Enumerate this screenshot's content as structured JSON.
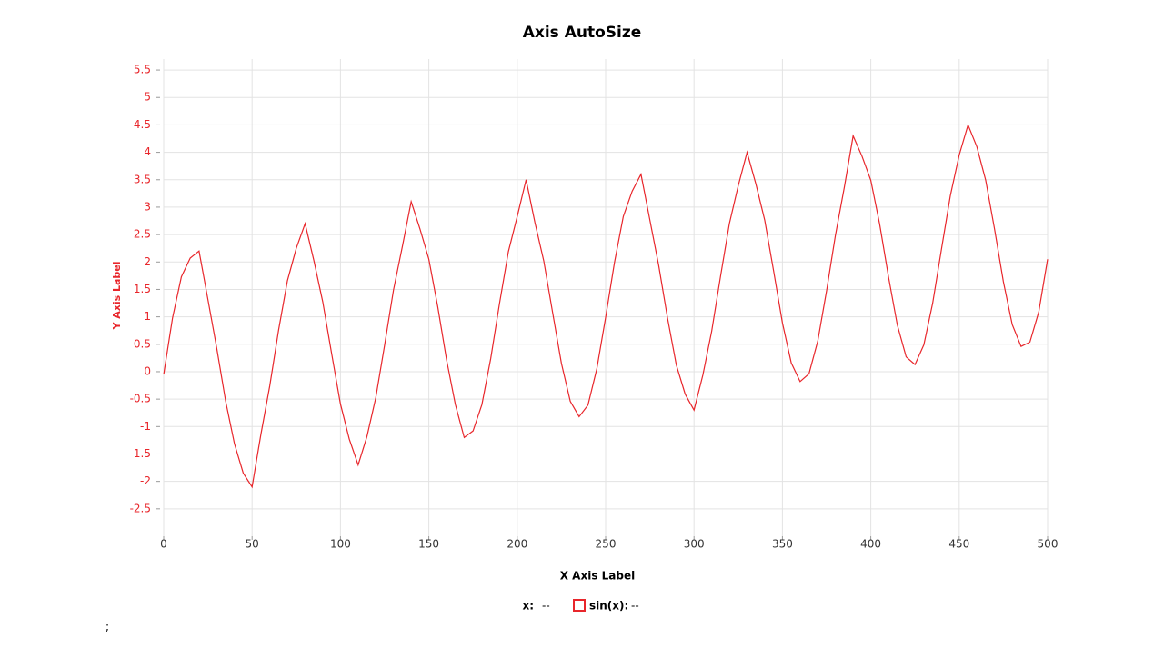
{
  "chart_data": {
    "type": "line",
    "title": "Axis AutoSize",
    "x_label": "X Axis Label",
    "y_label": "Y Axis Label",
    "x": [
      0,
      5,
      10,
      15,
      20,
      25,
      30,
      35,
      40,
      45,
      50,
      55,
      60,
      65,
      70,
      75,
      80,
      85,
      90,
      95,
      100,
      105,
      110,
      115,
      120,
      125,
      130,
      135,
      140,
      145,
      150,
      155,
      160,
      165,
      170,
      175,
      180,
      185,
      190,
      195,
      200,
      205,
      210,
      215,
      220,
      225,
      230,
      235,
      240,
      245,
      250,
      255,
      260,
      265,
      270,
      275,
      280,
      285,
      290,
      295,
      300,
      305,
      310,
      315,
      320,
      325,
      330,
      335,
      340,
      345,
      350,
      355,
      360,
      365,
      370,
      375,
      380,
      385,
      390,
      395,
      400,
      405,
      410,
      415,
      420,
      425,
      430,
      435,
      440,
      445,
      450,
      455,
      460,
      465,
      470,
      475,
      480,
      485,
      490,
      495,
      500
    ],
    "series": [
      {
        "name": "sin(x):",
        "color": "#e8262b",
        "values": [
          -0.05,
          0.98,
          1.73,
          2.07,
          2.2,
          1.32,
          0.43,
          -0.53,
          -1.31,
          -1.85,
          -2.1,
          -1.14,
          -0.26,
          0.76,
          1.66,
          2.25,
          2.7,
          2.02,
          1.27,
          0.33,
          -0.59,
          -1.23,
          -1.7,
          -1.18,
          -0.47,
          0.49,
          1.49,
          2.28,
          3.1,
          2.6,
          2.05,
          1.19,
          0.22,
          -0.6,
          -1.2,
          -1.08,
          -0.6,
          0.24,
          1.25,
          2.19,
          2.83,
          3.5,
          2.72,
          2.02,
          1.08,
          0.15,
          -0.54,
          -0.82,
          -0.61,
          0.05,
          0.99,
          1.99,
          2.83,
          3.29,
          3.6,
          2.77,
          1.94,
          0.98,
          0.12,
          -0.41,
          -0.7,
          -0.06,
          0.74,
          1.74,
          2.7,
          3.39,
          4.0,
          3.42,
          2.76,
          1.84,
          0.89,
          0.16,
          -0.18,
          -0.04,
          0.56,
          1.48,
          2.49,
          3.36,
          4.3,
          3.93,
          3.49,
          2.69,
          1.73,
          0.85,
          0.27,
          0.13,
          0.49,
          1.25,
          2.24,
          3.21,
          3.95,
          4.5,
          4.1,
          3.49,
          2.6,
          1.64,
          0.86,
          0.46,
          0.54,
          1.09,
          2.05
        ]
      }
    ],
    "xlim": [
      0,
      500
    ],
    "xticks": [
      0,
      50,
      100,
      150,
      200,
      250,
      300,
      350,
      400,
      450,
      500
    ],
    "ylim": [
      -3,
      5.7
    ],
    "yticks": [
      -2.5,
      -2,
      -1.5,
      -1,
      -0.5,
      0,
      0.5,
      1,
      1.5,
      2,
      2.5,
      3,
      3.5,
      4,
      4.5,
      5,
      5.5
    ],
    "grid": true,
    "readout": {
      "x_label": "x:",
      "x_value": "--",
      "series_value": "--"
    },
    "stray_text": ";"
  }
}
